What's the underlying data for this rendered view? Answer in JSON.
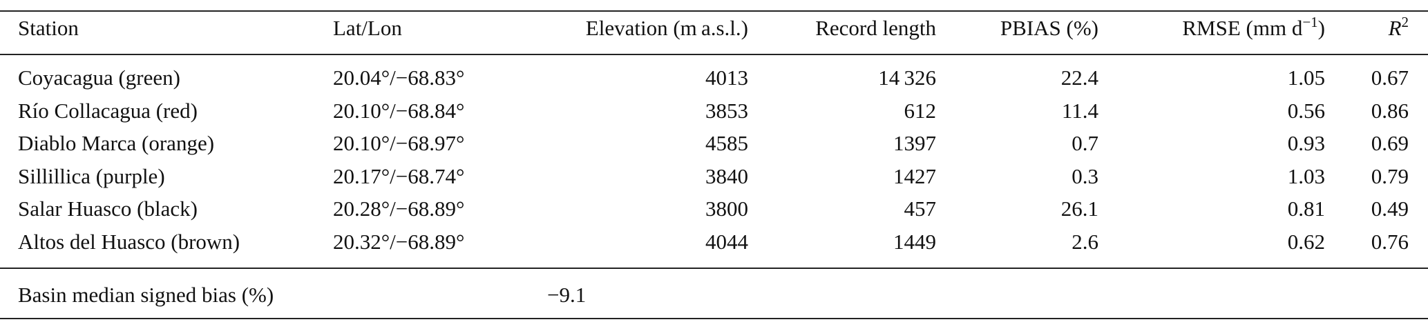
{
  "table": {
    "header": [
      "Station",
      "Lat/Lon",
      "Elevation (m a.s.l.)",
      "Record length",
      "PBIAS (%)",
      {
        "text": "RMSE (mm d",
        "sup": "−1",
        "after": ")"
      },
      {
        "text": "R",
        "sup": "2"
      }
    ],
    "rows": [
      [
        "Coyacagua (green)",
        "20.04°/−68.83°",
        "4013",
        "14 326",
        "22.4",
        "1.05",
        "0.67"
      ],
      [
        "Río Collacagua (red)",
        "20.10°/−68.84°",
        "3853",
        "612",
        "11.4",
        "0.56",
        "0.86"
      ],
      [
        "Diablo Marca (orange)",
        "20.10°/−68.97°",
        "4585",
        "1397",
        "0.7",
        "0.93",
        "0.69"
      ],
      [
        "Sillillica (purple)",
        "20.17°/−68.74°",
        "3840",
        "1427",
        "0.3",
        "1.03",
        "0.79"
      ],
      [
        "Salar Huasco (black)",
        "20.28°/−68.89°",
        "3800",
        "457",
        "26.1",
        "0.81",
        "0.49"
      ],
      [
        "Altos del Huasco (brown)",
        "20.32°/−68.89°",
        "4044",
        "1449",
        "2.6",
        "0.62",
        "0.76"
      ]
    ],
    "footer": [
      "Basin median signed bias (%)",
      "−9.1"
    ]
  }
}
